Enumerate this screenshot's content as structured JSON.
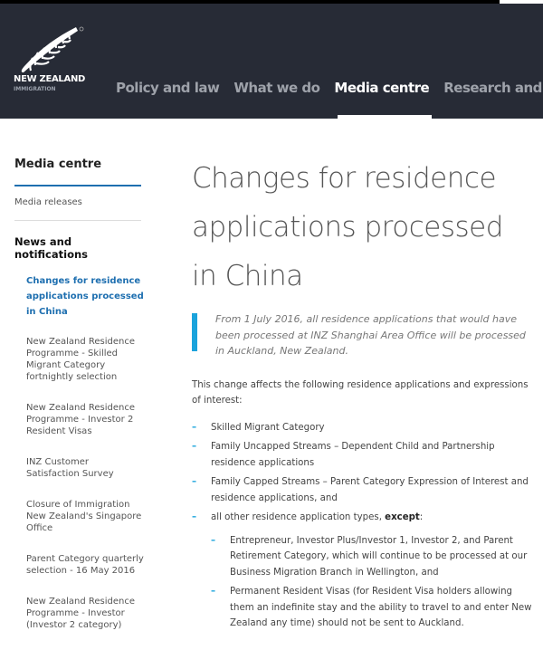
{
  "header": {
    "logo": {
      "name": "NEW ZEALAND",
      "sub": "IMMIGRATION"
    },
    "nav": [
      {
        "label": "Policy and law",
        "active": false
      },
      {
        "label": "What we do",
        "active": false
      },
      {
        "label": "Media centre",
        "active": true
      },
      {
        "label": "Research and",
        "active": false
      }
    ]
  },
  "sidebar": {
    "title": "Media centre",
    "media_releases": "Media releases",
    "news_heading": "News and notifications",
    "items": [
      {
        "label": "Changes for residence applications processed in China",
        "current": true
      },
      {
        "label": "New Zealand Residence Programme - Skilled Migrant Category fortnightly selection"
      },
      {
        "label": "New Zealand Residence Programme - Investor 2 Resident Visas"
      },
      {
        "label": "INZ Customer Satisfaction Survey"
      },
      {
        "label": "Closure of Immigration New Zealand's Singapore Office"
      },
      {
        "label": "Parent Category quarterly selection - 16 May 2016"
      },
      {
        "label": "New Zealand Residence Programme - Investor (Investor 2 category)"
      }
    ]
  },
  "main": {
    "title": "Changes for residence applications processed in China",
    "quote": "From 1 July 2016, all residence applications that would have been processed at INZ Shanghai Area Office will be processed in Auckland, New Zealand.",
    "intro": "This change affects the following residence applications and expressions of interest:",
    "list": [
      "Skilled Migrant Category",
      "Family Uncapped Streams – Dependent Child and Partnership residence applications",
      "Family Capped Streams – Parent Category Expression of Interest and residence applications, and"
    ],
    "last_item": {
      "text": "all other residence application types, ",
      "bold": "except",
      ":": ":"
    },
    "sublist": [
      "Entrepreneur, Investor Plus/Investor 1, Investor 2, and Parent Retirement Category, which will continue to be processed at our Business Migration Branch in Wellington, and",
      "Permanent Resident Visas (for Resident Visa holders allowing them an indefinite stay and the ability to travel to and enter New Zealand any time) should not be sent to Auckland."
    ],
    "dash": "–"
  },
  "colors": {
    "header": "#272b36",
    "accent": "#1aa3dc",
    "link": "#1e6fb0"
  }
}
